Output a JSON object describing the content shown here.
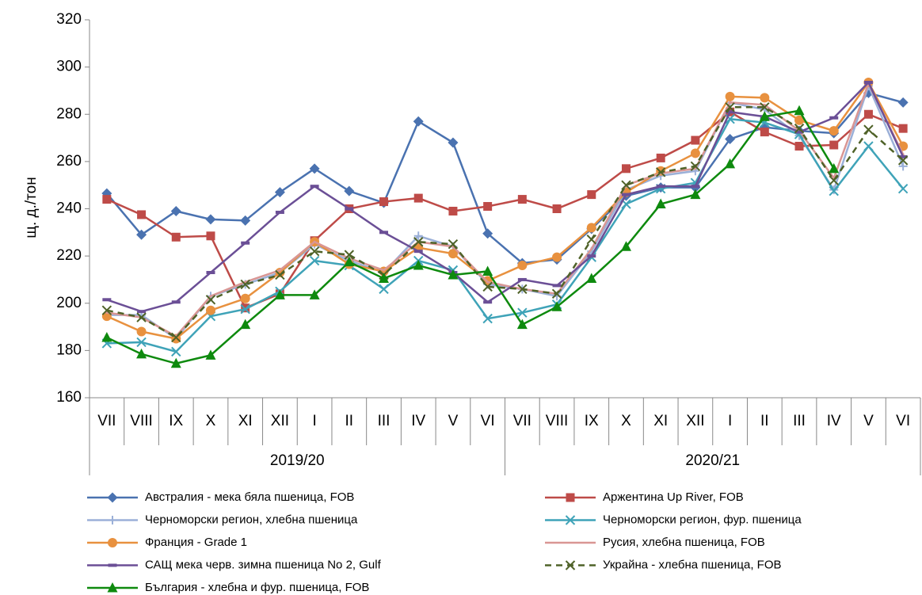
{
  "chart_data": {
    "type": "line",
    "y_label": "щ. д./тон",
    "categories": [
      "VII",
      "VIII",
      "IX",
      "X",
      "XI",
      "XII",
      "I",
      "II",
      "III",
      "IV",
      "V",
      "VI",
      "VII",
      "VIII",
      "IX",
      "X",
      "XI",
      "XII",
      "I",
      "II",
      "III",
      "IV",
      "V",
      "VI"
    ],
    "groups": [
      {
        "label": "2019/20",
        "span": 12
      },
      {
        "label": "2020/21",
        "span": 12
      }
    ],
    "ylim": [
      160,
      320
    ],
    "yticks": [
      160,
      180,
      200,
      220,
      240,
      260,
      280,
      300,
      320
    ],
    "grid": false,
    "series": [
      {
        "name": "Австралия - мека бяла пшеница, FOB",
        "color": "#4a72b0",
        "marker": "diamond",
        "dashed": false,
        "values": [
          246.5,
          229,
          239,
          235.5,
          235,
          247,
          257,
          247.5,
          242.5,
          277,
          268,
          229.5,
          217,
          218.5,
          231.5,
          245.5,
          249,
          249,
          269.5,
          274.5,
          273,
          272,
          289,
          285
        ]
      },
      {
        "name": "Аржентина Up River, FOB",
        "color": "#be4b48",
        "marker": "square",
        "dashed": false,
        "values": [
          244,
          237.5,
          228,
          228.5,
          198,
          204,
          226.5,
          240,
          243,
          244.5,
          239,
          241,
          244,
          240,
          246,
          257,
          261.5,
          269,
          281,
          272.5,
          266.5,
          267,
          280,
          274
        ]
      },
      {
        "name": "Черноморски регион, хлебна пшеница",
        "color": "#9bb0d8",
        "marker": "plus",
        "dashed": false,
        "values": [
          195,
          195,
          185,
          203,
          208,
          213,
          225,
          218,
          213,
          228.5,
          224,
          208,
          206,
          203,
          222,
          248,
          254,
          256,
          285,
          282,
          271,
          248,
          292,
          258
        ]
      },
      {
        "name": "Черноморски регион, фур. пшеница",
        "color": "#3fa3b8",
        "marker": "x",
        "dashed": false,
        "values": [
          183,
          183.5,
          179.5,
          194.5,
          197.5,
          205,
          218,
          216,
          206,
          218,
          214,
          193.5,
          196,
          199.5,
          219.5,
          242,
          248.5,
          251,
          278,
          276.5,
          271.5,
          247.5,
          266.5,
          248.5
        ]
      },
      {
        "name": "Франция - Grade 1",
        "color": "#e8913f",
        "marker": "circle",
        "dashed": false,
        "values": [
          194.5,
          188,
          185,
          197,
          202,
          213,
          226,
          216.5,
          213.5,
          223.5,
          221,
          209.5,
          216,
          219.5,
          232,
          247,
          256,
          263.5,
          287.5,
          287,
          277.5,
          273,
          293.5,
          266.5
        ]
      },
      {
        "name": "Русия, хлебна пшеница, FOB",
        "color": "#d99694",
        "marker": "none",
        "dashed": false,
        "values": [
          196,
          194,
          186,
          203,
          209,
          214,
          226,
          219,
          214,
          226,
          224,
          209,
          206,
          204,
          223,
          250,
          255,
          257,
          285,
          284,
          273,
          253,
          293,
          263
        ]
      },
      {
        "name": "САЩ мека черв. зимна пшеница No 2, Gulf",
        "color": "#6b4f96",
        "marker": "dash",
        "dashed": false,
        "values": [
          201.5,
          196.5,
          200.5,
          213,
          225.5,
          238.5,
          249.5,
          240,
          230,
          222,
          213,
          200.5,
          210,
          207.5,
          220,
          246,
          249.5,
          249.5,
          281,
          279,
          272.5,
          278.5,
          293.5,
          262
        ]
      },
      {
        "name": "Украйна - хлебна пшеница, FOB",
        "color": "#4f6228",
        "marker": "x",
        "dashed": true,
        "values": [
          197,
          194,
          185.5,
          201.5,
          208,
          212,
          222,
          220.5,
          212,
          226,
          225,
          207,
          206,
          204,
          227,
          250,
          255.5,
          258,
          283,
          283,
          274,
          252,
          273.5,
          260.5
        ]
      },
      {
        "name": "България - хлебна и фур. пшеница, FOB",
        "color": "#0e8a0e",
        "marker": "triangle",
        "dashed": false,
        "values": [
          185.5,
          178.5,
          174.5,
          178,
          191,
          203.5,
          203.5,
          217.5,
          210.5,
          216,
          212,
          213.5,
          191,
          198.5,
          210.5,
          224,
          242,
          246,
          259,
          279,
          281.5,
          257,
          null,
          null
        ]
      }
    ]
  }
}
